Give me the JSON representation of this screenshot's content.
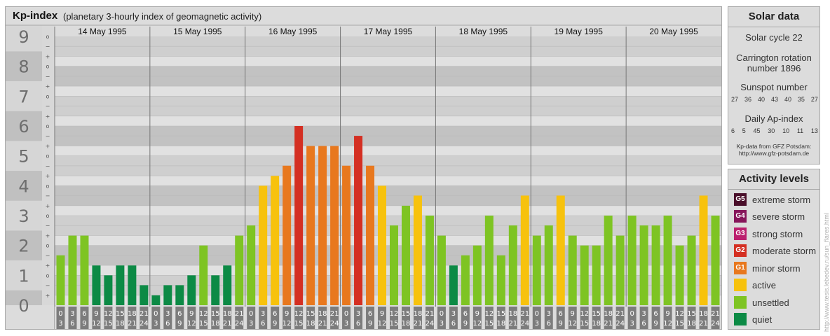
{
  "header": {
    "title": "Kp-index",
    "subtitle": "(planetary 3-hourly index of geomagnetic activity)"
  },
  "solar": {
    "heading": "Solar data",
    "cycle": "Solar cycle 22",
    "carrington_line1": "Carrington rotation",
    "carrington_line2": "number 1896",
    "sunspot_label": "Sunspot number",
    "sunspots": [
      "27",
      "36",
      "40",
      "43",
      "40",
      "35",
      "27"
    ],
    "ap_label": "Daily Ap-index",
    "ap": [
      "6",
      "5",
      "45",
      "30",
      "10",
      "11",
      "13"
    ],
    "source_line1": "Kp-data from GFZ Potsdam:",
    "source_line2": "http://www.gfz-potsdam.de"
  },
  "activity": {
    "heading": "Activity levels",
    "levels": [
      {
        "code": "G5",
        "label": "extreme storm",
        "color": "#4a0f2a"
      },
      {
        "code": "G4",
        "label": "severe storm",
        "color": "#86155a"
      },
      {
        "code": "G3",
        "label": "strong storm",
        "color": "#bb1f6e"
      },
      {
        "code": "G2",
        "label": "moderate storm",
        "color": "#d42f22"
      },
      {
        "code": "G1",
        "label": "minor storm",
        "color": "#e8781e"
      },
      {
        "code": "",
        "label": "active",
        "color": "#f7c20d"
      },
      {
        "code": "",
        "label": "unsettled",
        "color": "#7ec423"
      },
      {
        "code": "",
        "label": "quiet",
        "color": "#0c8a45"
      }
    ]
  },
  "watermark": "http://www.tesis.lebedev.ru/sun_flares.html",
  "chart_data": {
    "type": "bar",
    "title": "Kp-index",
    "subtitle": "(planetary 3-hourly index of geomagnetic activity)",
    "ylim": [
      0,
      9
    ],
    "y_major_ticks": [
      "0",
      "1",
      "2",
      "3",
      "4",
      "5",
      "6",
      "7",
      "8",
      "9"
    ],
    "y_minor_marks": [
      "+",
      "−",
      "o"
    ],
    "days": [
      "14 May 1995",
      "15 May 1995",
      "16 May 1995",
      "17 May 1995",
      "18 May 1995",
      "19 May 1995",
      "20 May 1995"
    ],
    "interval_start": [
      "0",
      "3",
      "6",
      "9",
      "12",
      "15",
      "18",
      "21"
    ],
    "interval_end": [
      "3",
      "6",
      "9",
      "12",
      "15",
      "18",
      "21",
      "24"
    ],
    "values": [
      [
        1.67,
        2.33,
        2.33,
        1.33,
        1.0,
        1.33,
        1.33,
        0.67
      ],
      [
        0.33,
        0.67,
        0.67,
        1.0,
        2.0,
        1.0,
        1.33,
        2.33
      ],
      [
        2.67,
        4.0,
        4.33,
        4.67,
        6.0,
        5.33,
        5.33,
        5.33
      ],
      [
        4.67,
        5.67,
        4.67,
        4.0,
        2.67,
        3.33,
        3.67,
        3.0
      ],
      [
        2.33,
        1.33,
        1.67,
        2.0,
        3.0,
        1.67,
        2.67,
        3.67
      ],
      [
        2.33,
        2.67,
        3.67,
        2.33,
        2.0,
        2.0,
        3.0,
        2.33
      ],
      [
        3.0,
        2.67,
        2.67,
        3.0,
        2.0,
        2.33,
        3.67,
        3.0
      ]
    ],
    "colors": {
      "quiet": "#0c8a45",
      "unsettled": "#7ec423",
      "active": "#f7c20d",
      "G1": "#e8781e",
      "G2": "#d42f22"
    },
    "grid": true
  }
}
